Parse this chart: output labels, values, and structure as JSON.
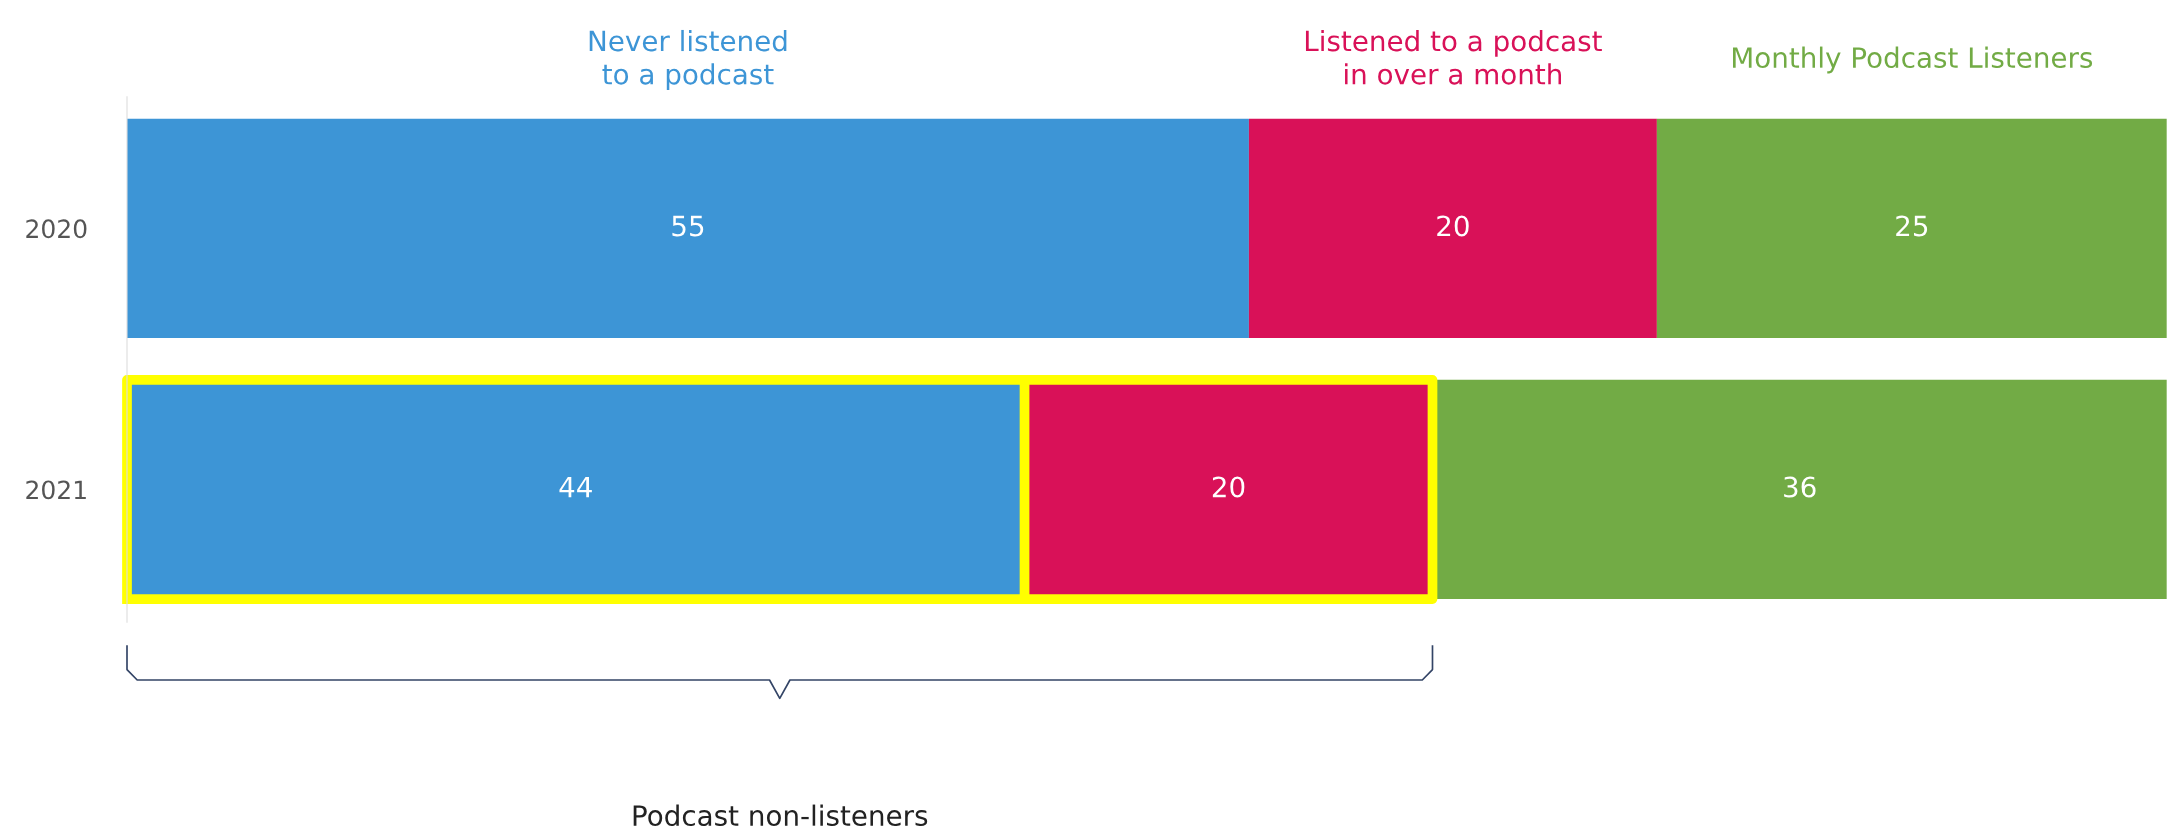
{
  "chart_data": {
    "type": "bar",
    "orientation": "horizontal",
    "stacked": true,
    "categories": [
      "2020",
      "2021"
    ],
    "series": [
      {
        "name": "Never listened\nto a podcast",
        "color": "#3d95d6",
        "values": [
          55,
          44
        ]
      },
      {
        "name": "Listened to a podcast\nin over a month",
        "color": "#d91158",
        "values": [
          20,
          20
        ]
      },
      {
        "name": "Monthly Podcast Listeners",
        "color": "#72ab45",
        "values": [
          25,
          36
        ]
      }
    ],
    "xlim": [
      0,
      100
    ],
    "tick_labels": "y",
    "data_labels": true,
    "grid": false,
    "legend": false,
    "annotations": [
      "Podcast non-listeners"
    ]
  }
}
